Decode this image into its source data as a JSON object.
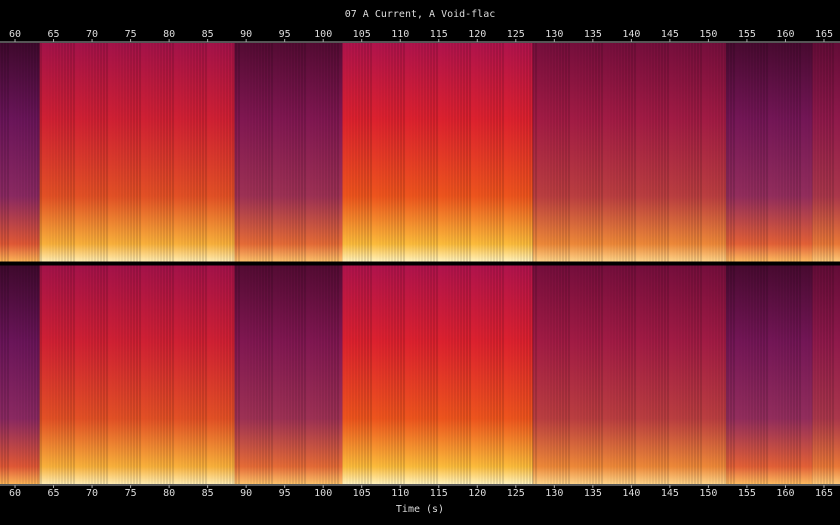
{
  "chart_data": {
    "type": "spectrogram",
    "title": "07 A Current, A Void-flac",
    "xlabel": "Time (s)",
    "channels": 2,
    "xlim": [
      58.05,
      167.08
    ],
    "xticks": [
      60,
      65,
      70,
      75,
      80,
      85,
      90,
      95,
      100,
      105,
      110,
      115,
      120,
      125,
      130,
      135,
      140,
      145,
      150,
      155,
      160,
      165
    ],
    "segments": [
      {
        "start": 58.05,
        "end": 63.2,
        "level": 0.3
      },
      {
        "start": 63.2,
        "end": 88.5,
        "level": 0.85
      },
      {
        "start": 88.5,
        "end": 102.5,
        "level": 0.42
      },
      {
        "start": 102.5,
        "end": 127.2,
        "level": 0.92
      },
      {
        "start": 127.2,
        "end": 152.3,
        "level": 0.6
      },
      {
        "start": 152.3,
        "end": 163.5,
        "level": 0.35
      },
      {
        "start": 163.5,
        "end": 167.08,
        "level": 0.5
      }
    ]
  }
}
